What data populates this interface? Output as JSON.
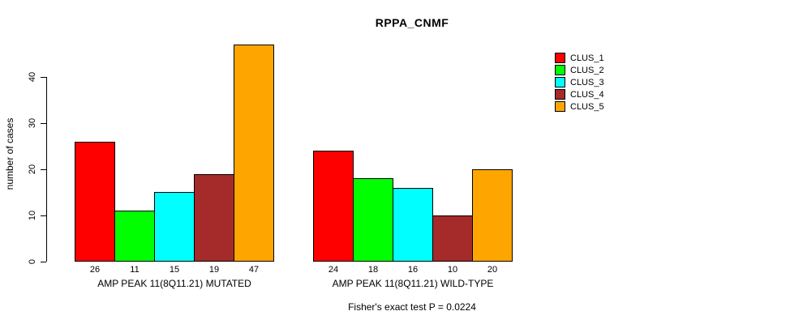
{
  "title": "RPPA_CNMF",
  "chart_data": {
    "type": "bar",
    "title": "RPPA_CNMF",
    "xlabel": "",
    "ylabel": "number of cases",
    "ylim": [
      0,
      47
    ],
    "yticks": [
      0,
      10,
      20,
      30,
      40
    ],
    "grid": false,
    "legend_position": "top-right",
    "series_names": [
      "CLUS_1",
      "CLUS_2",
      "CLUS_3",
      "CLUS_4",
      "CLUS_5"
    ],
    "series_colors": [
      "#FF0000",
      "#00FF00",
      "#00FFFF",
      "#A52A2A",
      "#FFA500"
    ],
    "groups": [
      {
        "label": "AMP PEAK 11(8Q11.21) MUTATED",
        "values": [
          26,
          11,
          15,
          19,
          47
        ]
      },
      {
        "label": "AMP PEAK 11(8Q11.21) WILD-TYPE",
        "values": [
          24,
          18,
          16,
          10,
          20
        ]
      }
    ],
    "footnote": "Fisher's exact test P = 0.0224"
  }
}
